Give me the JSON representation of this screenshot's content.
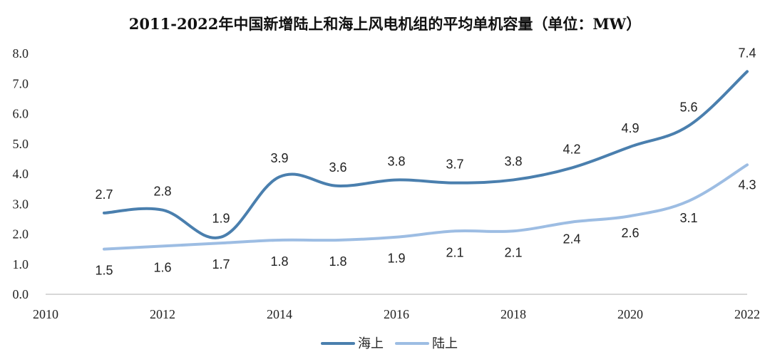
{
  "chart_data": {
    "type": "line",
    "title": "2011-2022年中国新增陆上和海上风电机组的平均单机容量（单位：MW）",
    "xlabel": "",
    "ylabel": "",
    "x": [
      2011,
      2012,
      2013,
      2014,
      2015,
      2016,
      2017,
      2018,
      2019,
      2020,
      2021,
      2022
    ],
    "xlim": [
      2010,
      2022
    ],
    "xticks": [
      "2010",
      "2012",
      "2014",
      "2016",
      "2018",
      "2020",
      "2022"
    ],
    "ylim": [
      0,
      8
    ],
    "yticks": [
      "0.0",
      "1.0",
      "2.0",
      "3.0",
      "4.0",
      "5.0",
      "6.0",
      "7.0",
      "8.0"
    ],
    "grid": false,
    "legend_position": "bottom",
    "series": [
      {
        "name": "海上",
        "color": "#4a7fae",
        "values": [
          2.7,
          2.8,
          1.9,
          3.9,
          3.6,
          3.8,
          3.7,
          3.8,
          4.2,
          4.9,
          5.6,
          7.4
        ],
        "labels": [
          "2.7",
          "2.8",
          "1.9",
          "3.9",
          "3.6",
          "3.8",
          "3.7",
          "3.8",
          "4.2",
          "4.9",
          "5.6",
          "7.4"
        ]
      },
      {
        "name": "陆上",
        "color": "#9dbde3",
        "values": [
          1.5,
          1.6,
          1.7,
          1.8,
          1.8,
          1.9,
          2.1,
          2.1,
          2.4,
          2.6,
          3.1,
          4.3
        ],
        "labels": [
          "1.5",
          "1.6",
          "1.7",
          "1.8",
          "1.8",
          "1.9",
          "2.1",
          "2.1",
          "2.4",
          "2.6",
          "3.1",
          "4.3"
        ]
      }
    ]
  }
}
